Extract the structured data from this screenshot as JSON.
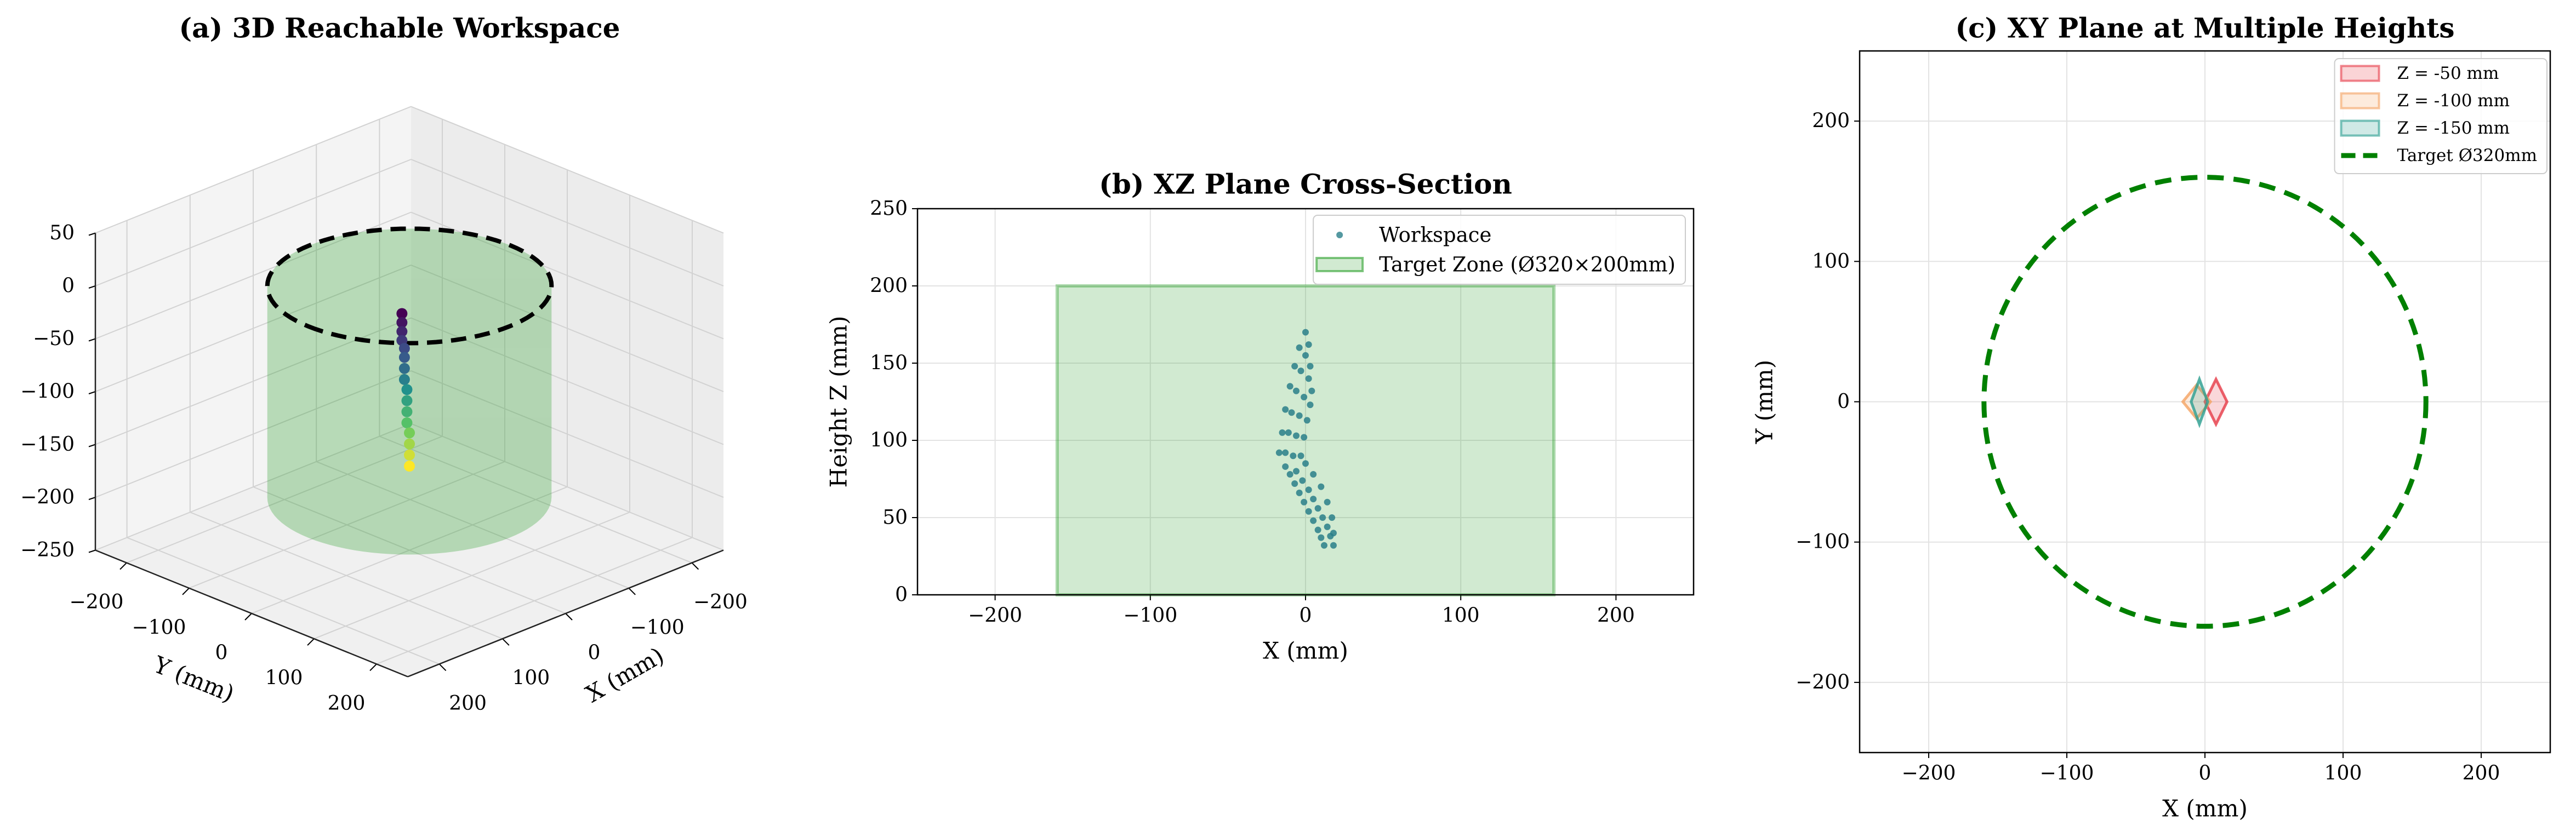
{
  "chart_data": [
    {
      "type": "scatter3d",
      "title": "(a) 3D Reachable Workspace",
      "xlabel": "X (mm)",
      "ylabel": "Y (mm)",
      "xlim": [
        -250,
        250
      ],
      "ylim": [
        -250,
        250
      ],
      "zlim": [
        -250,
        50
      ],
      "xticks": [
        {
          "value": -200,
          "label": "−200"
        },
        {
          "value": -100,
          "label": "−100"
        },
        0,
        100,
        200
      ],
      "yticks": [
        {
          "value": -200,
          "label": "−200"
        },
        {
          "value": -100,
          "label": "−100"
        },
        0,
        100,
        200
      ],
      "zticks": [
        {
          "value": -250,
          "label": "−250"
        },
        {
          "value": -200,
          "label": "−200"
        },
        {
          "value": -150,
          "label": "−150"
        },
        {
          "value": -100,
          "label": "−100"
        },
        {
          "value": -50,
          "label": "−50"
        },
        0,
        50
      ],
      "colormap": "viridis_r",
      "x": [
        -2,
        -1,
        0,
        1,
        -2,
        -1,
        0,
        1,
        -2,
        -1,
        0,
        1,
        -2,
        -1,
        0,
        1
      ],
      "y": [
        -14,
        -13,
        -12,
        -11,
        -10,
        -9,
        -8,
        -7,
        -6,
        -5,
        -4,
        -3,
        -2,
        -1,
        0,
        1
      ],
      "z": [
        -30,
        -38,
        -46,
        -54,
        -62,
        -70,
        -80,
        -90,
        -100,
        -110,
        -120,
        -130,
        -140,
        -150,
        -160,
        -170
      ],
      "cylinder": {
        "radius": 160,
        "zlim": [
          -200,
          0
        ],
        "color": "#2ca02c",
        "ring_color": "#000000"
      }
    },
    {
      "type": "scatter",
      "title": "(b) XZ Plane Cross-Section",
      "xlabel": "X (mm)",
      "ylabel": "Height Z (mm)",
      "xlim": [
        -250,
        250
      ],
      "ylim": [
        0,
        250
      ],
      "xticks": [
        {
          "value": -200,
          "label": "−200"
        },
        {
          "value": -100,
          "label": "−100"
        },
        0,
        100,
        200
      ],
      "yticks": [
        0,
        50,
        100,
        150,
        200,
        250
      ],
      "grid": true,
      "legend": "upper right",
      "series": [
        {
          "name": "Workspace",
          "color": "#2a7f8a",
          "x": [
            -17,
            -15,
            -13,
            -10,
            -7,
            -4,
            0,
            -13,
            -11,
            -9,
            -6,
            -3,
            0,
            2,
            -8,
            -6,
            -4,
            -1,
            2,
            3,
            -3,
            -1,
            1,
            3,
            4,
            -13,
            -10,
            -7,
            -4,
            -1,
            2,
            5,
            8,
            10,
            12,
            -6,
            -2,
            2,
            5,
            8,
            11,
            14,
            16,
            18,
            0,
            5,
            10,
            14,
            17,
            18
          ],
          "y": [
            92,
            105,
            120,
            135,
            148,
            160,
            170,
            92,
            105,
            118,
            132,
            145,
            155,
            162,
            90,
            103,
            116,
            128,
            140,
            148,
            90,
            102,
            113,
            123,
            132,
            83,
            78,
            72,
            66,
            60,
            54,
            48,
            42,
            37,
            32,
            80,
            74,
            68,
            62,
            56,
            50,
            44,
            38,
            32,
            85,
            78,
            70,
            60,
            50,
            40
          ]
        }
      ],
      "regions": [
        {
          "name": "Target Zone (Ø320×200mm)",
          "color": "#2ca02c",
          "x": [
            -160,
            160
          ],
          "y": [
            0,
            200
          ]
        }
      ]
    },
    {
      "type": "polygon",
      "title": "(c) XY Plane at Multiple Heights",
      "xlabel": "X (mm)",
      "ylabel": "Y (mm)",
      "xlim": [
        -250,
        250
      ],
      "ylim": [
        -250,
        250
      ],
      "xticks": [
        {
          "value": -200,
          "label": "−200"
        },
        {
          "value": -100,
          "label": "−100"
        },
        0,
        100,
        200
      ],
      "yticks": [
        {
          "value": -200,
          "label": "−200"
        },
        {
          "value": -100,
          "label": "−100"
        },
        0,
        100,
        200
      ],
      "grid": true,
      "legend": "upper right",
      "series": [
        {
          "name": "Z = -50 mm",
          "color": "#e63946",
          "x": [
            0,
            8,
            16,
            8
          ],
          "y": [
            0,
            16,
            0,
            -16
          ]
        },
        {
          "name": "Z = -100 mm",
          "color": "#f4a261",
          "x": [
            -16,
            -6,
            4,
            -6
          ],
          "y": [
            0,
            12,
            0,
            -12
          ]
        },
        {
          "name": "Z = -150 mm",
          "color": "#2a9d8f",
          "x": [
            -10,
            -4,
            2,
            -4
          ],
          "y": [
            0,
            16,
            0,
            -16
          ]
        }
      ],
      "circles": [
        {
          "name": "Target Ø320mm",
          "color": "#008000",
          "center": [
            0,
            0
          ],
          "radius": 160,
          "style": "dashed"
        }
      ]
    }
  ]
}
